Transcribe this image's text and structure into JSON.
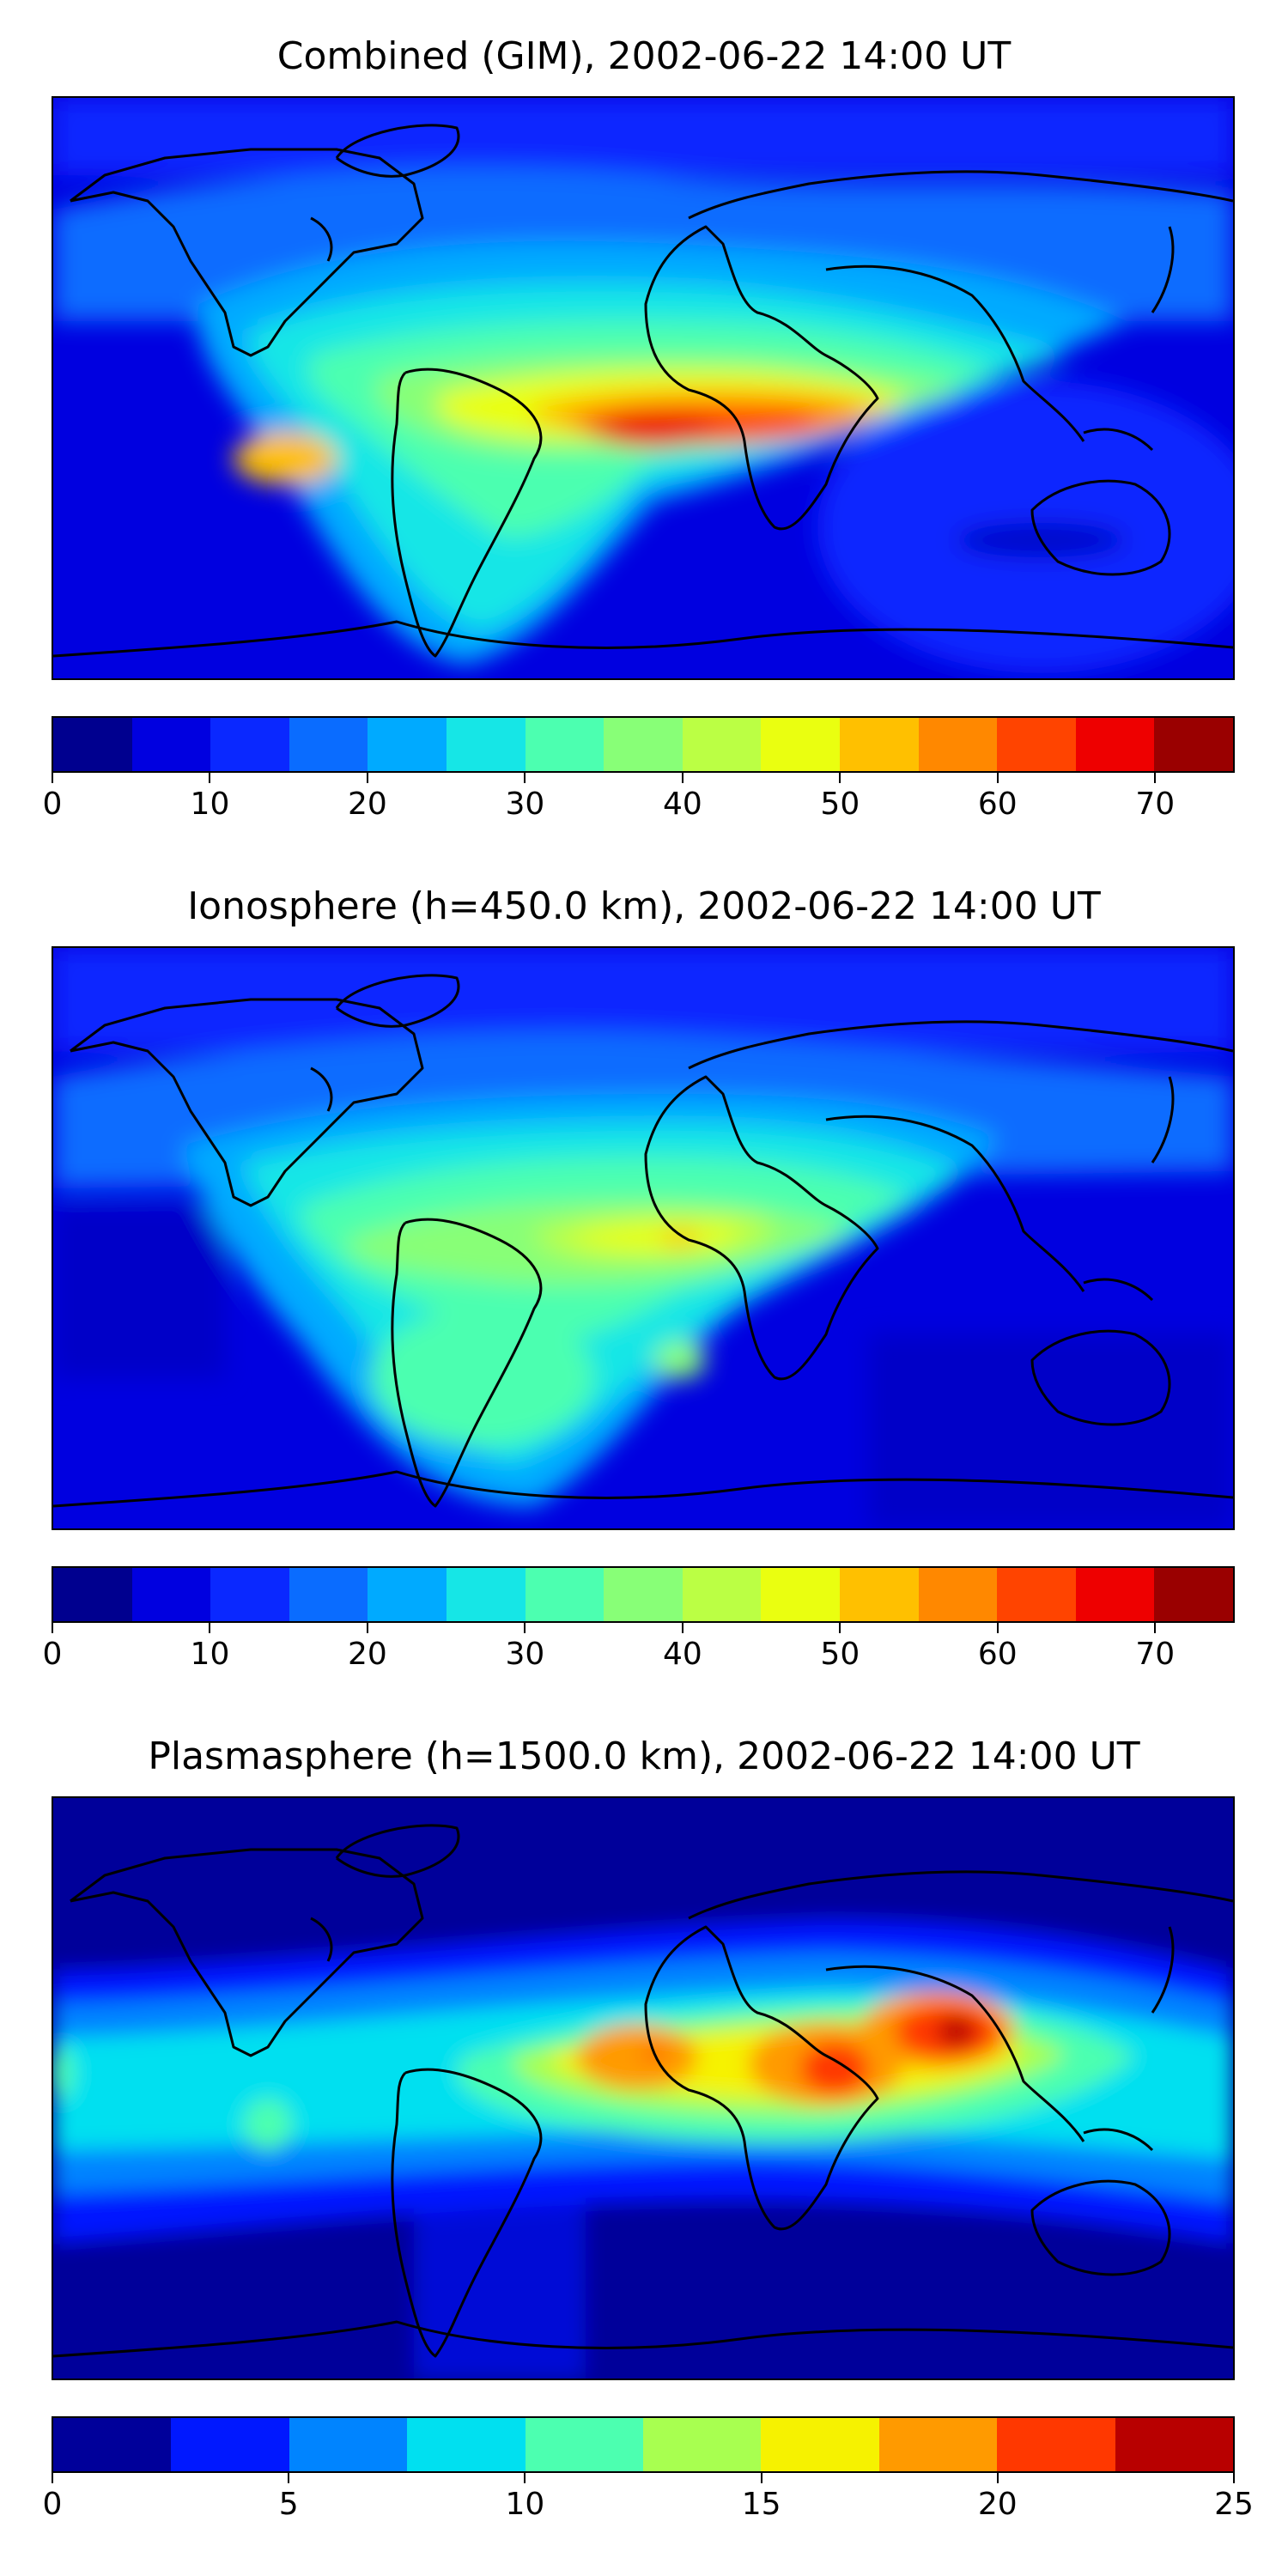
{
  "panels": [
    {
      "title": "Combined (GIM), 2002-06-22 14:00 UT",
      "colorbar": {
        "min": 0,
        "max": 75,
        "ticks": [
          "0",
          "10",
          "20",
          "30",
          "40",
          "50",
          "60",
          "70"
        ],
        "tick_values": [
          0,
          10,
          20,
          30,
          40,
          50,
          60,
          70
        ],
        "colors": [
          "#00008f",
          "#0000e0",
          "#0a28ff",
          "#0a6cff",
          "#00aaff",
          "#16e6e6",
          "#4cffb0",
          "#88ff77",
          "#bbff44",
          "#eaff10",
          "#ffc000",
          "#ff8800",
          "#ff4400",
          "#ee0000",
          "#9a0000"
        ]
      }
    },
    {
      "title": "Ionosphere  (h=450.0 km), 2002-06-22 14:00 UT",
      "colorbar": {
        "min": 0,
        "max": 75,
        "ticks": [
          "0",
          "10",
          "20",
          "30",
          "40",
          "50",
          "60",
          "70"
        ],
        "tick_values": [
          0,
          10,
          20,
          30,
          40,
          50,
          60,
          70
        ],
        "colors": [
          "#00008f",
          "#0000e0",
          "#0a28ff",
          "#0a6cff",
          "#00aaff",
          "#16e6e6",
          "#4cffb0",
          "#88ff77",
          "#bbff44",
          "#eaff10",
          "#ffc000",
          "#ff8800",
          "#ff4400",
          "#ee0000",
          "#9a0000"
        ]
      }
    },
    {
      "title": "Plasmasphere (h=1500.0 km), 2002-06-22 14:00 UT",
      "colorbar": {
        "min": 0,
        "max": 25,
        "ticks": [
          "0",
          "5",
          "10",
          "15",
          "20",
          "25"
        ],
        "tick_values": [
          0,
          5,
          10,
          15,
          20,
          25
        ],
        "colors": [
          "#00009a",
          "#0018ff",
          "#0084ff",
          "#00e0f0",
          "#4cffb0",
          "#a8ff50",
          "#f6f200",
          "#ff9a00",
          "#ff3800",
          "#b80000"
        ]
      }
    }
  ]
}
